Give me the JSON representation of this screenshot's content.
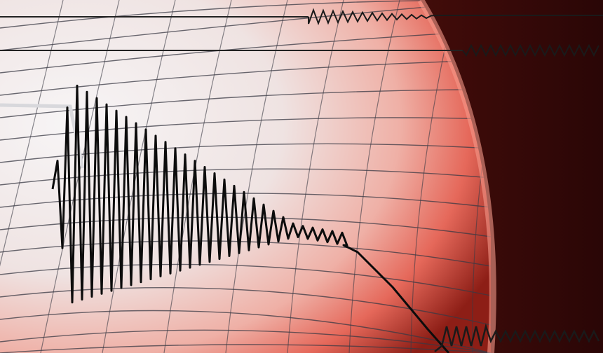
{
  "image": {
    "subject": "seismograph",
    "colors": {
      "paper_light": "#f4f1f1",
      "paper_mid": "#e9c9c4",
      "glow": "#f2786a",
      "dark_red": "#5a0f0c",
      "deep": "#2a0606",
      "grid": "#3a3a44",
      "trace": "#0c0c0c",
      "arm": "#d8d8dc"
    }
  }
}
